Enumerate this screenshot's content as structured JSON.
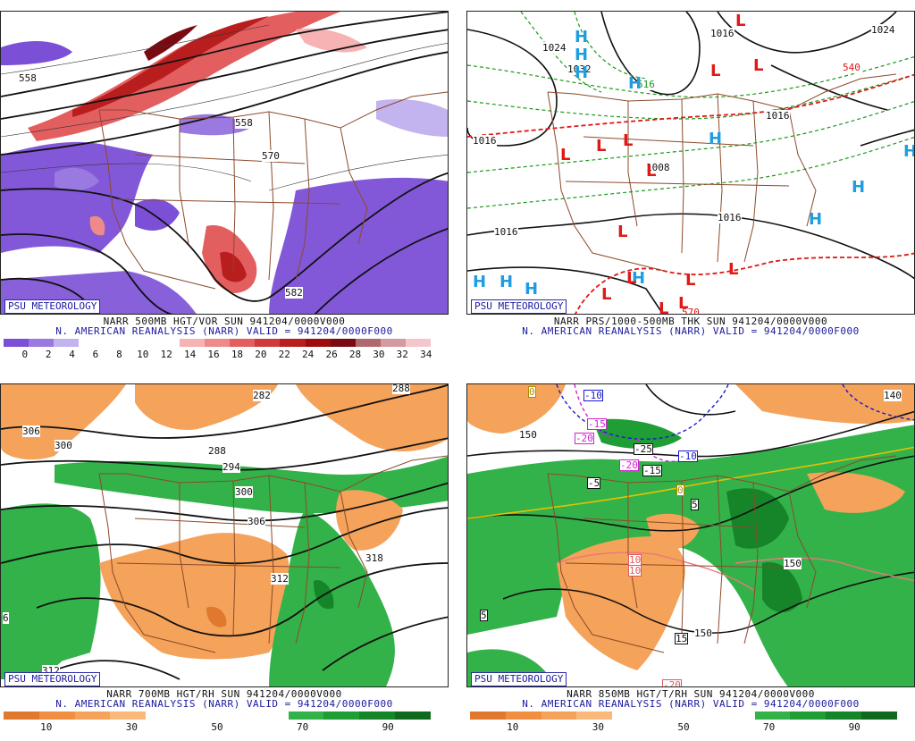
{
  "panels": [
    {
      "id": "p1",
      "badge": "PSU METEOROLOGY",
      "caption1": "NARR 500MB HGT/VOR SUN 941204/0000V000",
      "caption2": "N. AMERICAN REANALYSIS (NARR) VALID = 941204/0000F000",
      "colorbar": [
        "#7b4fd6",
        "#9a79e0",
        "#c3b3ef",
        "#ffffff",
        "#ffffff",
        "#ffffff",
        "#ffffff",
        "#f7b3b3",
        "#ef8a8a",
        "#e35f5f",
        "#cf3a3a",
        "#b81e1e",
        "#9c0c0c",
        "#7a0a12",
        "#b0686e",
        "#d49aa0",
        "#f4c6cb"
      ],
      "colorbar_ticks": [
        "0",
        "2",
        "4",
        "6",
        "8",
        "10",
        "12",
        "14",
        "16",
        "18",
        "20",
        "22",
        "24",
        "26",
        "28",
        "30",
        "32",
        "34"
      ],
      "contour_labels": [
        "558",
        "558",
        "570",
        "582"
      ],
      "h_markers": [],
      "l_markers": []
    },
    {
      "id": "p2",
      "badge": "PSU METEOROLOGY",
      "caption1": "NARR PRS/1000-500MB THK SUN 941204/0000V000",
      "caption2": "N. AMERICAN REANALYSIS (NARR) VALID = 941204/0000F000",
      "colorbar": [],
      "colorbar_ticks": [],
      "contour_labels": [
        "1016",
        "1016",
        "1016",
        "1016",
        "1024",
        "1032",
        "1024",
        "1008",
        "540",
        "516",
        "570",
        "1016"
      ],
      "h_markers": [
        "H",
        "H",
        "H",
        "H",
        "H",
        "H",
        "H",
        "H",
        "H",
        "H",
        "H",
        "H"
      ],
      "l_markers": [
        "L",
        "L",
        "L",
        "L",
        "L",
        "L",
        "L",
        "L",
        "L",
        "L",
        "L",
        "L",
        "L",
        "L"
      ]
    },
    {
      "id": "p3",
      "badge": "PSU METEOROLOGY",
      "caption1": "NARR 700MB HGT/RH SUN 941204/0000V000",
      "caption2": "N. AMERICAN REANALYSIS (NARR) VALID = 941204/0000F000",
      "colorbar": [
        "#e0782e",
        "#f08f42",
        "#f5a25a",
        "#f9b97a",
        "#ffffff",
        "#ffffff",
        "#ffffff",
        "#ffffff",
        "#33b24a",
        "#1f9e35",
        "#168428",
        "#0f6a1e"
      ],
      "colorbar_ticks": [
        "10",
        "30",
        "50",
        "70",
        "90"
      ],
      "contour_labels": [
        "282",
        "288",
        "306",
        "300",
        "288",
        "294",
        "300",
        "306",
        "318",
        "312",
        "312",
        "6"
      ],
      "h_markers": [],
      "l_markers": []
    },
    {
      "id": "p4",
      "badge": "PSU METEOROLOGY",
      "caption1": "NARR 850MB HGT/T/RH SUN 941204/0000V000",
      "caption2": "N. AMERICAN REANALYSIS (NARR) VALID = 941204/0000F000",
      "colorbar": [
        "#e0782e",
        "#f08f42",
        "#f5a25a",
        "#f9b97a",
        "#ffffff",
        "#ffffff",
        "#ffffff",
        "#ffffff",
        "#33b24a",
        "#1f9e35",
        "#168428",
        "#0f6a1e"
      ],
      "colorbar_ticks": [
        "10",
        "30",
        "50",
        "70",
        "90"
      ],
      "contour_labels": [
        "0",
        "150",
        "-10",
        "-15",
        "-20",
        "-25",
        "-20",
        "-15",
        "-10",
        "-5",
        "0",
        "5",
        "10",
        "10",
        "5",
        "15",
        "150",
        "150",
        "140",
        "-20"
      ],
      "h_markers": [],
      "l_markers": []
    }
  ],
  "colors": {
    "badge_text": "#1a1aa0",
    "caption_blue": "#1a1aa0",
    "state_lines": "#8b4a2a",
    "h_color": "#1e9ee0",
    "l_color": "#e01818"
  }
}
